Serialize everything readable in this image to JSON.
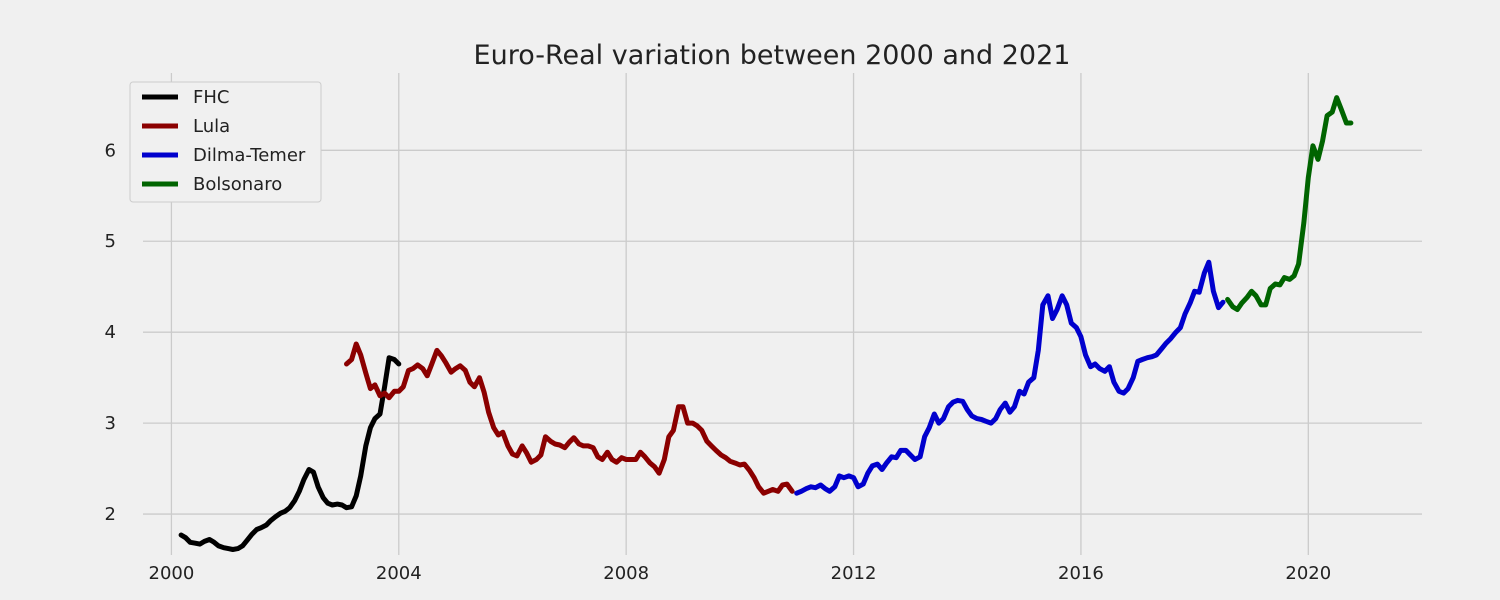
{
  "chart_data": {
    "type": "line",
    "title": "Euro-Real variation between 2000 and 2021",
    "xlabel": "",
    "ylabel": "",
    "xlim": [
      1999.5,
      2022.0
    ],
    "ylim": [
      1.55,
      6.85
    ],
    "x_ticks": [
      2000,
      2004,
      2008,
      2012,
      2016,
      2020
    ],
    "x_tick_labels": [
      "2000",
      "2004",
      "2008",
      "2012",
      "2016",
      "2020"
    ],
    "y_ticks": [
      2,
      3,
      4,
      5,
      6
    ],
    "y_tick_labels": [
      "2",
      "3",
      "4",
      "5",
      "6"
    ],
    "grid": true,
    "legend_position": "top-left",
    "series": [
      {
        "name": "FHC",
        "color": "#000000",
        "points": [
          [
            2000.17,
            1.77
          ],
          [
            2000.25,
            1.74
          ],
          [
            2000.33,
            1.69
          ],
          [
            2000.42,
            1.68
          ],
          [
            2000.5,
            1.67
          ],
          [
            2000.58,
            1.7
          ],
          [
            2000.67,
            1.72
          ],
          [
            2000.75,
            1.69
          ],
          [
            2000.83,
            1.65
          ],
          [
            2000.92,
            1.63
          ],
          [
            2001.0,
            1.62
          ],
          [
            2001.08,
            1.61
          ],
          [
            2001.17,
            1.62
          ],
          [
            2001.25,
            1.65
          ],
          [
            2001.33,
            1.71
          ],
          [
            2001.42,
            1.78
          ],
          [
            2001.5,
            1.83
          ],
          [
            2001.58,
            1.85
          ],
          [
            2001.67,
            1.88
          ],
          [
            2001.75,
            1.93
          ],
          [
            2001.83,
            1.97
          ],
          [
            2001.92,
            2.01
          ],
          [
            2002.0,
            2.03
          ],
          [
            2002.08,
            2.07
          ],
          [
            2002.17,
            2.15
          ],
          [
            2002.25,
            2.25
          ],
          [
            2002.33,
            2.38
          ],
          [
            2002.42,
            2.49
          ],
          [
            2002.5,
            2.46
          ],
          [
            2002.58,
            2.3
          ],
          [
            2002.67,
            2.18
          ],
          [
            2002.75,
            2.12
          ],
          [
            2002.83,
            2.1
          ],
          [
            2002.92,
            2.11
          ],
          [
            2003.0,
            2.1
          ],
          [
            2003.08,
            2.07
          ],
          [
            2003.17,
            2.08
          ],
          [
            2003.25,
            2.2
          ],
          [
            2003.33,
            2.42
          ],
          [
            2003.42,
            2.75
          ],
          [
            2003.5,
            2.95
          ],
          [
            2003.58,
            3.05
          ],
          [
            2003.67,
            3.1
          ],
          [
            2003.75,
            3.4
          ],
          [
            2003.83,
            3.72
          ],
          [
            2003.92,
            3.7
          ],
          [
            2004.0,
            3.65
          ]
        ]
      },
      {
        "name": "Lula",
        "color": "#8b0000",
        "points": [
          [
            2003.08,
            3.65
          ],
          [
            2003.17,
            3.7
          ],
          [
            2003.25,
            3.87
          ],
          [
            2003.33,
            3.75
          ],
          [
            2003.42,
            3.55
          ],
          [
            2003.5,
            3.38
          ],
          [
            2003.58,
            3.42
          ],
          [
            2003.67,
            3.3
          ],
          [
            2003.75,
            3.33
          ],
          [
            2003.83,
            3.28
          ],
          [
            2003.92,
            3.35
          ],
          [
            2004.0,
            3.35
          ],
          [
            2004.08,
            3.4
          ],
          [
            2004.17,
            3.58
          ],
          [
            2004.25,
            3.6
          ],
          [
            2004.33,
            3.64
          ],
          [
            2004.42,
            3.6
          ],
          [
            2004.5,
            3.52
          ],
          [
            2004.58,
            3.65
          ],
          [
            2004.67,
            3.8
          ],
          [
            2004.75,
            3.74
          ],
          [
            2004.83,
            3.66
          ],
          [
            2004.92,
            3.56
          ],
          [
            2005.0,
            3.6
          ],
          [
            2005.08,
            3.63
          ],
          [
            2005.17,
            3.58
          ],
          [
            2005.25,
            3.45
          ],
          [
            2005.33,
            3.4
          ],
          [
            2005.42,
            3.5
          ],
          [
            2005.5,
            3.34
          ],
          [
            2005.58,
            3.12
          ],
          [
            2005.67,
            2.95
          ],
          [
            2005.75,
            2.87
          ],
          [
            2005.83,
            2.9
          ],
          [
            2005.92,
            2.75
          ],
          [
            2006.0,
            2.66
          ],
          [
            2006.08,
            2.64
          ],
          [
            2006.17,
            2.75
          ],
          [
            2006.25,
            2.67
          ],
          [
            2006.33,
            2.57
          ],
          [
            2006.42,
            2.6
          ],
          [
            2006.5,
            2.65
          ],
          [
            2006.58,
            2.85
          ],
          [
            2006.67,
            2.8
          ],
          [
            2006.75,
            2.77
          ],
          [
            2006.83,
            2.76
          ],
          [
            2006.92,
            2.73
          ],
          [
            2007.0,
            2.79
          ],
          [
            2007.08,
            2.84
          ],
          [
            2007.17,
            2.77
          ],
          [
            2007.25,
            2.75
          ],
          [
            2007.33,
            2.75
          ],
          [
            2007.42,
            2.73
          ],
          [
            2007.5,
            2.63
          ],
          [
            2007.58,
            2.6
          ],
          [
            2007.67,
            2.68
          ],
          [
            2007.75,
            2.6
          ],
          [
            2007.83,
            2.57
          ],
          [
            2007.92,
            2.62
          ],
          [
            2008.0,
            2.6
          ],
          [
            2008.08,
            2.6
          ],
          [
            2008.17,
            2.6
          ],
          [
            2008.25,
            2.68
          ],
          [
            2008.33,
            2.63
          ],
          [
            2008.42,
            2.56
          ],
          [
            2008.5,
            2.52
          ],
          [
            2008.58,
            2.45
          ],
          [
            2008.67,
            2.6
          ],
          [
            2008.75,
            2.85
          ],
          [
            2008.83,
            2.92
          ],
          [
            2008.92,
            3.18
          ],
          [
            2009.0,
            3.18
          ],
          [
            2009.08,
            3.0
          ],
          [
            2009.17,
            3.0
          ],
          [
            2009.25,
            2.97
          ],
          [
            2009.33,
            2.92
          ],
          [
            2009.42,
            2.8
          ],
          [
            2009.5,
            2.75
          ],
          [
            2009.58,
            2.7
          ],
          [
            2009.67,
            2.65
          ],
          [
            2009.75,
            2.62
          ],
          [
            2009.83,
            2.58
          ],
          [
            2009.92,
            2.56
          ],
          [
            2010.0,
            2.54
          ],
          [
            2010.08,
            2.55
          ],
          [
            2010.17,
            2.48
          ],
          [
            2010.25,
            2.4
          ],
          [
            2010.33,
            2.3
          ],
          [
            2010.42,
            2.23
          ],
          [
            2010.5,
            2.25
          ],
          [
            2010.58,
            2.27
          ],
          [
            2010.67,
            2.25
          ],
          [
            2010.75,
            2.32
          ],
          [
            2010.83,
            2.33
          ],
          [
            2010.92,
            2.25
          ]
        ]
      },
      {
        "name": "Dilma-Temer",
        "color": "#0000cd",
        "points": [
          [
            2011.0,
            2.23
          ],
          [
            2011.08,
            2.25
          ],
          [
            2011.17,
            2.28
          ],
          [
            2011.25,
            2.3
          ],
          [
            2011.33,
            2.29
          ],
          [
            2011.42,
            2.32
          ],
          [
            2011.5,
            2.28
          ],
          [
            2011.58,
            2.25
          ],
          [
            2011.67,
            2.3
          ],
          [
            2011.75,
            2.42
          ],
          [
            2011.83,
            2.4
          ],
          [
            2011.92,
            2.42
          ],
          [
            2012.0,
            2.4
          ],
          [
            2012.08,
            2.3
          ],
          [
            2012.17,
            2.33
          ],
          [
            2012.25,
            2.45
          ],
          [
            2012.33,
            2.53
          ],
          [
            2012.42,
            2.55
          ],
          [
            2012.5,
            2.49
          ],
          [
            2012.58,
            2.56
          ],
          [
            2012.67,
            2.63
          ],
          [
            2012.75,
            2.62
          ],
          [
            2012.83,
            2.7
          ],
          [
            2012.92,
            2.7
          ],
          [
            2013.0,
            2.65
          ],
          [
            2013.08,
            2.6
          ],
          [
            2013.17,
            2.63
          ],
          [
            2013.25,
            2.85
          ],
          [
            2013.33,
            2.95
          ],
          [
            2013.42,
            3.1
          ],
          [
            2013.5,
            3.0
          ],
          [
            2013.58,
            3.05
          ],
          [
            2013.67,
            3.18
          ],
          [
            2013.75,
            3.23
          ],
          [
            2013.83,
            3.25
          ],
          [
            2013.92,
            3.24
          ],
          [
            2014.0,
            3.15
          ],
          [
            2014.08,
            3.08
          ],
          [
            2014.17,
            3.05
          ],
          [
            2014.25,
            3.04
          ],
          [
            2014.33,
            3.02
          ],
          [
            2014.42,
            3.0
          ],
          [
            2014.5,
            3.05
          ],
          [
            2014.58,
            3.15
          ],
          [
            2014.67,
            3.22
          ],
          [
            2014.75,
            3.12
          ],
          [
            2014.83,
            3.18
          ],
          [
            2014.92,
            3.35
          ],
          [
            2015.0,
            3.32
          ],
          [
            2015.08,
            3.45
          ],
          [
            2015.17,
            3.5
          ],
          [
            2015.25,
            3.8
          ],
          [
            2015.33,
            4.3
          ],
          [
            2015.42,
            4.4
          ],
          [
            2015.5,
            4.15
          ],
          [
            2015.58,
            4.25
          ],
          [
            2015.67,
            4.4
          ],
          [
            2015.75,
            4.3
          ],
          [
            2015.83,
            4.1
          ],
          [
            2015.92,
            4.05
          ],
          [
            2016.0,
            3.95
          ],
          [
            2016.08,
            3.75
          ],
          [
            2016.17,
            3.62
          ],
          [
            2016.25,
            3.65
          ],
          [
            2016.33,
            3.6
          ],
          [
            2016.42,
            3.57
          ],
          [
            2016.5,
            3.62
          ],
          [
            2016.58,
            3.45
          ],
          [
            2016.67,
            3.35
          ],
          [
            2016.75,
            3.33
          ],
          [
            2016.83,
            3.38
          ],
          [
            2016.92,
            3.5
          ],
          [
            2017.0,
            3.68
          ],
          [
            2017.08,
            3.7
          ],
          [
            2017.17,
            3.72
          ],
          [
            2017.25,
            3.73
          ],
          [
            2017.33,
            3.75
          ],
          [
            2017.42,
            3.82
          ],
          [
            2017.5,
            3.88
          ],
          [
            2017.58,
            3.93
          ],
          [
            2017.67,
            4.0
          ],
          [
            2017.75,
            4.05
          ],
          [
            2017.83,
            4.2
          ],
          [
            2017.92,
            4.32
          ],
          [
            2018.0,
            4.45
          ],
          [
            2018.08,
            4.44
          ],
          [
            2018.17,
            4.65
          ],
          [
            2018.25,
            4.77
          ],
          [
            2018.33,
            4.45
          ],
          [
            2018.42,
            4.27
          ],
          [
            2018.5,
            4.33
          ]
        ]
      },
      {
        "name": "Bolsonaro",
        "color": "#006400",
        "points": [
          [
            2018.58,
            4.36
          ],
          [
            2018.67,
            4.28
          ],
          [
            2018.75,
            4.25
          ],
          [
            2018.83,
            4.32
          ],
          [
            2018.92,
            4.38
          ],
          [
            2019.0,
            4.45
          ],
          [
            2019.08,
            4.4
          ],
          [
            2019.17,
            4.3
          ],
          [
            2019.25,
            4.3
          ],
          [
            2019.33,
            4.48
          ],
          [
            2019.42,
            4.53
          ],
          [
            2019.5,
            4.52
          ],
          [
            2019.58,
            4.6
          ],
          [
            2019.67,
            4.58
          ],
          [
            2019.75,
            4.62
          ],
          [
            2019.83,
            4.75
          ],
          [
            2019.92,
            5.2
          ],
          [
            2020.0,
            5.7
          ],
          [
            2020.08,
            6.05
          ],
          [
            2020.17,
            5.9
          ],
          [
            2020.25,
            6.1
          ],
          [
            2020.33,
            6.38
          ],
          [
            2020.42,
            6.42
          ],
          [
            2020.5,
            6.58
          ],
          [
            2020.58,
            6.45
          ],
          [
            2020.67,
            6.3
          ],
          [
            2020.75,
            6.3
          ]
        ]
      }
    ]
  }
}
